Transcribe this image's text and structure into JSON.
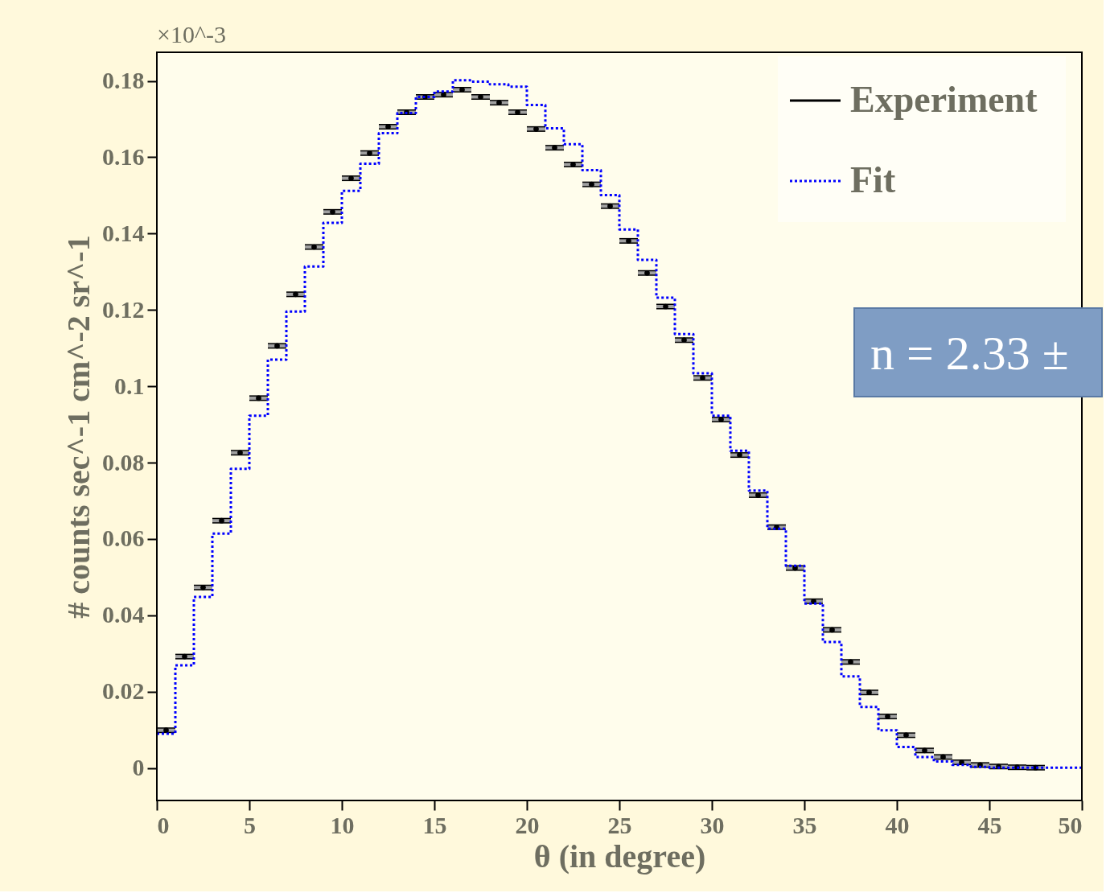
{
  "chart_data": {
    "type": "scatter",
    "xlabel": "θ (in degree)",
    "ylabel": "# counts sec^-1 cm^-2 sr^-1",
    "annotations": [
      "×10^-3",
      "n = 2.33 ±"
    ],
    "xlim": [
      0,
      50
    ],
    "xticks": [
      0,
      5,
      10,
      15,
      20,
      25,
      30,
      35,
      40,
      45,
      50
    ],
    "ylim": [
      -0.0085,
      0.1875
    ],
    "yticks": [
      0,
      0.02,
      0.04,
      0.06,
      0.08,
      0.1,
      0.12,
      0.14,
      0.16,
      0.18
    ],
    "grid": false,
    "legend": "top right",
    "series": [
      {
        "name": "Experiment",
        "marker": "circle",
        "color": "#000000",
        "x": [
          0.5,
          1.5,
          2.5,
          3.5,
          4.5,
          5.5,
          6.5,
          7.5,
          8.5,
          9.5,
          10.5,
          11.5,
          12.5,
          13.5,
          14.5,
          15.5,
          16.5,
          17.5,
          18.5,
          19.5,
          20.5,
          21.5,
          22.5,
          23.5,
          24.5,
          25.5,
          26.5,
          27.5,
          28.5,
          29.5,
          30.5,
          31.5,
          32.5,
          33.5,
          34.5,
          35.5,
          36.5,
          37.5,
          38.5,
          39.5,
          40.5,
          41.5,
          42.5,
          43.5,
          44.5,
          45.5,
          46.5,
          47.5
        ],
        "values": [
          0.0099,
          0.0292,
          0.0473,
          0.0648,
          0.0826,
          0.0969,
          0.1106,
          0.1241,
          0.1365,
          0.1457,
          0.1545,
          0.1611,
          0.168,
          0.1718,
          0.1758,
          0.1764,
          0.1777,
          0.1758,
          0.1743,
          0.1718,
          0.1674,
          0.1625,
          0.1581,
          0.1529,
          0.1472,
          0.1381,
          0.1297,
          0.1209,
          0.1121,
          0.1022,
          0.0913,
          0.082,
          0.0715,
          0.0631,
          0.0524,
          0.0437,
          0.0362,
          0.0278,
          0.0198,
          0.0135,
          0.0086,
          0.0046,
          0.0029,
          0.0015,
          0.0008,
          0.0004,
          0.0002,
          0.0001
        ],
        "errors": [
          0.0006,
          0.0006,
          0.0006,
          0.0006,
          0.0006,
          0.0006,
          0.0006,
          0.0006,
          0.0006,
          0.0006,
          0.0006,
          0.0006,
          0.0006,
          0.0006,
          0.0006,
          0.0006,
          0.0006,
          0.0006,
          0.0006,
          0.0006,
          0.0006,
          0.0006,
          0.0006,
          0.0006,
          0.0006,
          0.0006,
          0.0006,
          0.0006,
          0.0006,
          0.0006,
          0.0006,
          0.0006,
          0.0006,
          0.0006,
          0.0006,
          0.0006,
          0.0006,
          0.0006,
          0.0006,
          0.0006,
          0.0006,
          0.0006,
          0.0006,
          0.0006,
          0.0006,
          0.0006,
          0.0006,
          0.0006
        ],
        "xerrors": [
          0.5,
          0.5,
          0.5,
          0.5,
          0.5,
          0.5,
          0.5,
          0.5,
          0.5,
          0.5,
          0.5,
          0.5,
          0.5,
          0.5,
          0.5,
          0.5,
          0.5,
          0.5,
          0.5,
          0.5,
          0.5,
          0.5,
          0.5,
          0.5,
          0.5,
          0.5,
          0.5,
          0.5,
          0.5,
          0.5,
          0.5,
          0.5,
          0.5,
          0.5,
          0.5,
          0.5,
          0.5,
          0.5,
          0.5,
          0.5,
          0.5,
          0.5,
          0.5,
          0.5,
          0.5,
          0.5,
          0.5,
          0.5
        ]
      },
      {
        "name": "Fit",
        "type": "step",
        "color": "#0000ff",
        "line_style": "dotted",
        "x": [
          0,
          1,
          2,
          3,
          4,
          5,
          6,
          7,
          8,
          9,
          10,
          11,
          12,
          13,
          14,
          15,
          16,
          17,
          18,
          19,
          20,
          21,
          22,
          23,
          24,
          25,
          26,
          27,
          28,
          29,
          30,
          31,
          32,
          33,
          34,
          35,
          36,
          37,
          38,
          39,
          40,
          41,
          42,
          43,
          44,
          45,
          46,
          47,
          48,
          49,
          50
        ],
        "values": [
          0.009,
          0.0269,
          0.0448,
          0.0614,
          0.0784,
          0.0923,
          0.107,
          0.1196,
          0.1314,
          0.1428,
          0.1512,
          0.1583,
          0.1663,
          0.1716,
          0.1758,
          0.1772,
          0.1802,
          0.1798,
          0.1791,
          0.1785,
          0.1737,
          0.1676,
          0.1634,
          0.1566,
          0.1501,
          0.1411,
          0.1331,
          0.1232,
          0.1137,
          0.1034,
          0.0923,
          0.0831,
          0.0727,
          0.0627,
          0.053,
          0.0431,
          0.033,
          0.024,
          0.016,
          0.0099,
          0.0055,
          0.0029,
          0.0017,
          0.0008,
          0.0003,
          0.0001,
          0.0001,
          0.0001,
          0.0001,
          0.0001,
          0.0001
        ]
      }
    ]
  }
}
